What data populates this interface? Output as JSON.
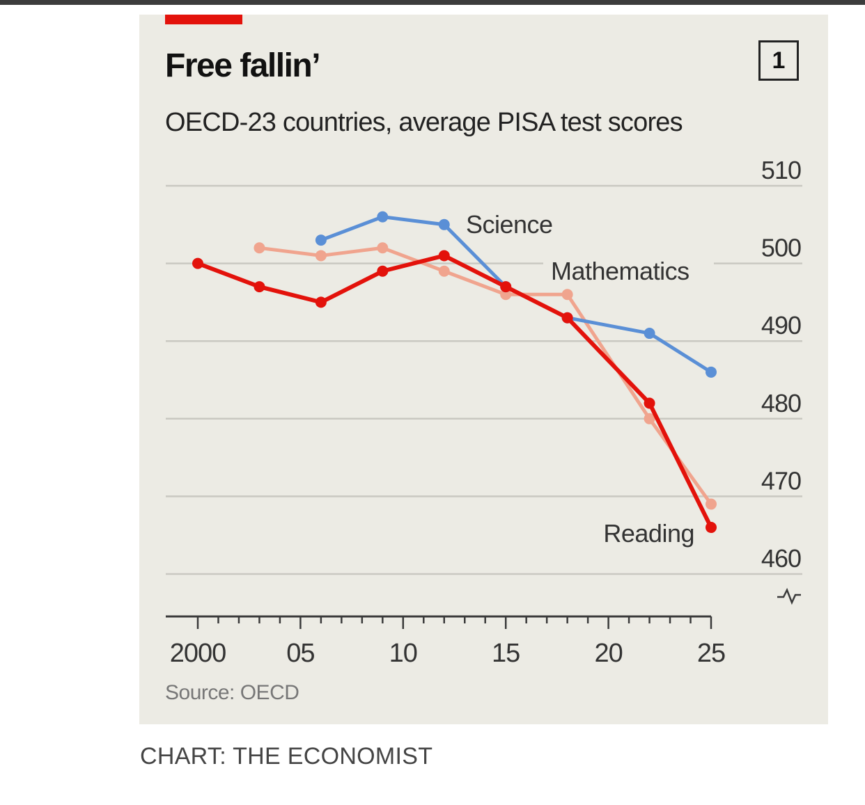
{
  "credit": "CHART: THE ECONOMIST",
  "chart_data": {
    "type": "line",
    "title": "Free fallin’",
    "subtitle": "OECD-23 countries, average PISA test scores",
    "chart_number": "1",
    "source": "Source: OECD",
    "x_tick_labels": [
      "2000",
      "05",
      "10",
      "15",
      "20",
      "25"
    ],
    "x_ticks": [
      2000,
      2005,
      2010,
      2015,
      2020,
      2025
    ],
    "y_ticks": [
      460,
      470,
      480,
      490,
      500,
      510
    ],
    "xlim": [
      2000,
      2025
    ],
    "ylim": [
      460,
      510
    ],
    "y_axis_position": "right",
    "grid": true,
    "axis_break": true,
    "series": [
      {
        "name": "Mathematics",
        "color": "#f0a48e",
        "x": [
          2003,
          2006,
          2009,
          2012,
          2015,
          2018,
          2022,
          2025
        ],
        "y": [
          502,
          501,
          502,
          499,
          496,
          496,
          480,
          469
        ]
      },
      {
        "name": "Science",
        "color": "#5a8fd6",
        "x": [
          2006,
          2009,
          2012,
          2015,
          2018,
          2022,
          2025
        ],
        "y": [
          503,
          506,
          505,
          497,
          493,
          491,
          486
        ]
      },
      {
        "name": "Reading",
        "color": "#e3120b",
        "x": [
          2000,
          2003,
          2006,
          2009,
          2012,
          2015,
          2018,
          2022,
          2025
        ],
        "y": [
          500,
          497,
          495,
          499,
          501,
          497,
          493,
          482,
          466
        ]
      }
    ]
  },
  "colors": {
    "background": "#ecebe4",
    "accent": "#e3120b",
    "grid": "#c9c8c1",
    "axis": "#3a3a3a"
  }
}
